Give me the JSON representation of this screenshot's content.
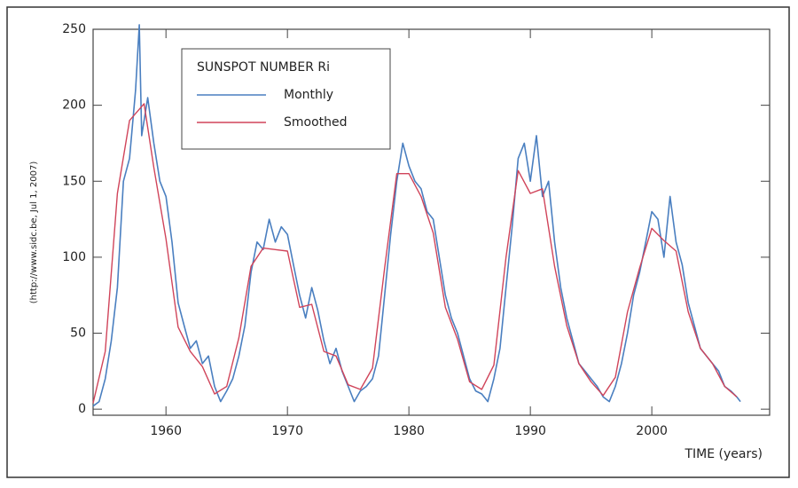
{
  "chart_data": {
    "type": "line",
    "title": "SUNSPOT NUMBER Ri",
    "x_label": "TIME (years)",
    "y_label": "(http://www.sidc.be, Jul  1, 2007)",
    "xlim": [
      1954,
      2009.7
    ],
    "ylim": [
      -4,
      250
    ],
    "xticks": [
      1960,
      1970,
      1980,
      1990,
      2000
    ],
    "yticks": [
      0,
      50,
      100,
      150,
      200,
      250
    ],
    "series": [
      {
        "name": "Monthly",
        "color": "#4a7fc0",
        "x": [
          1954.0,
          1954.5,
          1955.0,
          1955.5,
          1956.0,
          1956.5,
          1957.0,
          1957.5,
          1957.8,
          1958.0,
          1958.5,
          1959.0,
          1959.5,
          1960.0,
          1960.5,
          1961.0,
          1961.5,
          1962.0,
          1962.5,
          1963.0,
          1963.5,
          1964.0,
          1964.5,
          1965.0,
          1965.5,
          1966.0,
          1966.5,
          1967.0,
          1967.5,
          1968.0,
          1968.5,
          1969.0,
          1969.5,
          1970.0,
          1970.5,
          1971.0,
          1971.5,
          1972.0,
          1972.5,
          1973.0,
          1973.5,
          1974.0,
          1974.5,
          1975.0,
          1975.5,
          1976.0,
          1976.5,
          1977.0,
          1977.5,
          1978.0,
          1978.5,
          1979.0,
          1979.5,
          1980.0,
          1980.5,
          1981.0,
          1981.5,
          1982.0,
          1982.5,
          1983.0,
          1983.5,
          1984.0,
          1984.5,
          1985.0,
          1985.5,
          1986.0,
          1986.5,
          1987.0,
          1987.5,
          1988.0,
          1988.5,
          1989.0,
          1989.5,
          1990.0,
          1990.5,
          1991.0,
          1991.5,
          1992.0,
          1992.5,
          1993.0,
          1993.5,
          1994.0,
          1994.5,
          1995.0,
          1995.5,
          1996.0,
          1996.5,
          1997.0,
          1997.5,
          1998.0,
          1998.5,
          1999.0,
          1999.5,
          2000.0,
          2000.5,
          2001.0,
          2001.5,
          2002.0,
          2002.5,
          2003.0,
          2003.5,
          2004.0,
          2004.5,
          2005.0,
          2005.5,
          2006.0,
          2006.5,
          2007.0,
          2007.3
        ],
        "values": [
          2,
          5,
          20,
          45,
          80,
          150,
          165,
          210,
          253,
          180,
          205,
          175,
          150,
          140,
          110,
          70,
          55,
          40,
          45,
          30,
          35,
          15,
          5,
          12,
          20,
          35,
          55,
          90,
          110,
          105,
          125,
          110,
          120,
          115,
          95,
          75,
          60,
          80,
          65,
          45,
          30,
          40,
          25,
          15,
          5,
          12,
          15,
          20,
          35,
          75,
          115,
          150,
          175,
          160,
          150,
          145,
          130,
          125,
          100,
          75,
          60,
          50,
          35,
          20,
          12,
          10,
          5,
          20,
          40,
          80,
          120,
          165,
          175,
          150,
          180,
          140,
          150,
          110,
          80,
          60,
          45,
          30,
          25,
          20,
          15,
          8,
          5,
          15,
          30,
          50,
          75,
          90,
          110,
          130,
          125,
          100,
          140,
          110,
          95,
          70,
          55,
          40,
          35,
          30,
          25,
          15,
          12,
          8,
          5
        ]
      },
      {
        "name": "Smoothed",
        "color": "#d0445a",
        "x": [
          1954,
          1955,
          1956,
          1957,
          1958.2,
          1959,
          1960,
          1961,
          1962,
          1963,
          1964,
          1965,
          1966,
          1967,
          1968,
          1969,
          1970,
          1971,
          1972,
          1973,
          1974,
          1975,
          1976,
          1977,
          1978,
          1979,
          1980,
          1981,
          1982,
          1983,
          1984,
          1985,
          1986,
          1987,
          1988,
          1989,
          1990,
          1991,
          1992,
          1993,
          1994,
          1995,
          1996,
          1997,
          1998,
          1999,
          2000,
          2001,
          2002,
          2003,
          2004,
          2005,
          2006,
          2007
        ],
        "values": [
          4,
          38,
          142,
          190,
          201,
          159,
          112,
          54,
          38,
          28,
          10,
          15,
          47,
          94,
          106,
          105,
          104,
          67,
          69,
          38,
          35,
          16,
          13,
          27,
          93,
          155,
          155,
          140,
          116,
          67,
          46,
          18,
          13,
          29,
          100,
          157,
          142,
          145,
          94,
          55,
          30,
          18,
          9,
          21,
          64,
          93,
          119,
          111,
          104,
          64,
          40,
          30,
          15,
          8
        ]
      }
    ]
  }
}
